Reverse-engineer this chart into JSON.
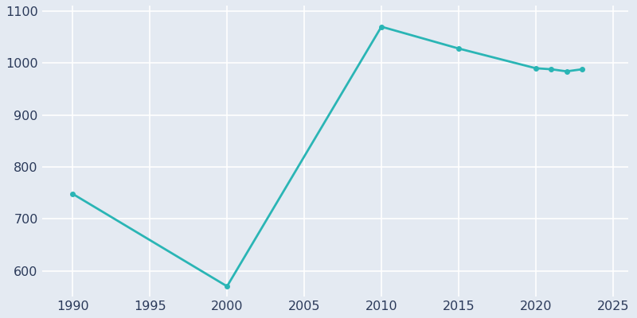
{
  "years": [
    1990,
    2000,
    2010,
    2015,
    2020,
    2021,
    2022,
    2023
  ],
  "population": [
    748,
    570,
    1070,
    1028,
    990,
    988,
    984,
    988
  ],
  "line_color": "#2ab5b5",
  "marker": "o",
  "marker_size": 4,
  "line_width": 2,
  "xlim": [
    1988,
    2026
  ],
  "ylim": [
    550,
    1110
  ],
  "xticks": [
    1990,
    1995,
    2000,
    2005,
    2010,
    2015,
    2020,
    2025
  ],
  "yticks": [
    600,
    700,
    800,
    900,
    1000,
    1100
  ],
  "background_color": "#e4eaf2",
  "plot_bg_color": "#e4eaf2",
  "grid_color": "#ffffff",
  "tick_label_color": "#2b3a5a",
  "tick_fontsize": 11.5,
  "figsize": [
    8.0,
    4.0
  ],
  "dpi": 100
}
